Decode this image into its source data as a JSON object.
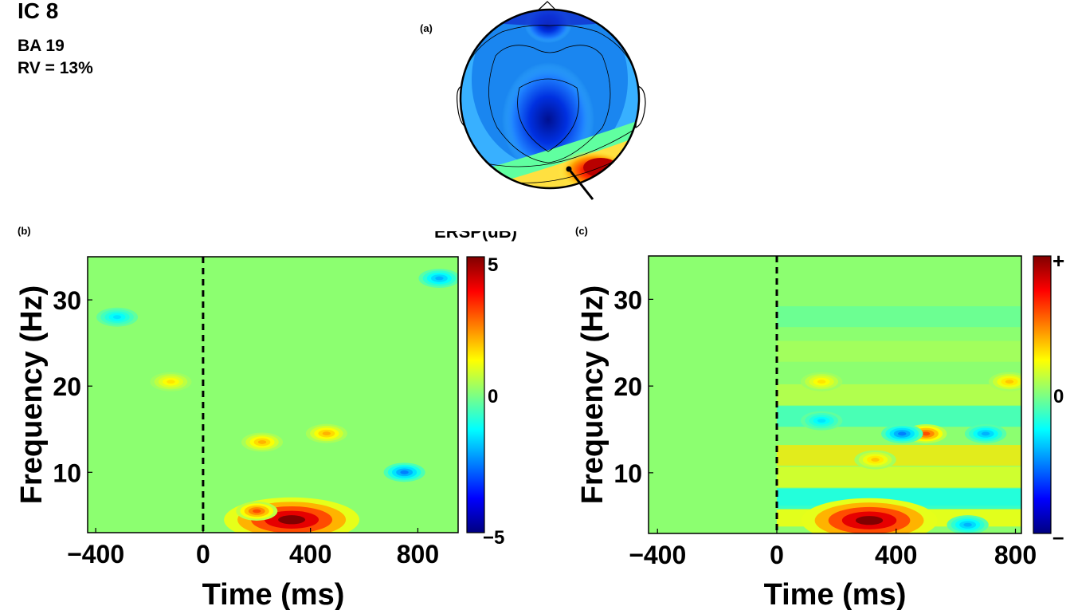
{
  "header": {
    "title": "IC 8",
    "line1": "BA 19",
    "line2": "RV = 13%"
  },
  "panels": {
    "a": "(a)",
    "b": "(b)",
    "c": "(c)"
  },
  "colors": {
    "background_green": "#8fff6f",
    "axis": "#000000"
  },
  "chart_data": [
    {
      "panel": "(a)",
      "type": "heatmap",
      "description_kind": "scalp topography",
      "dipole_marker": true
    },
    {
      "panel": "(b)",
      "type": "heatmap",
      "title": "ERSP(dB)",
      "xlabel": "Time (ms)",
      "ylabel": "Frequency (Hz)",
      "xlim": [
        -430,
        950
      ],
      "ylim": [
        3,
        35
      ],
      "xticks": [
        -400,
        0,
        400,
        800
      ],
      "yticks": [
        10,
        20,
        30
      ],
      "colorbar": {
        "min": -5,
        "max": 5,
        "ticks": [
          "5",
          "0",
          "−5"
        ]
      },
      "event_line_x": 0,
      "blobs": [
        {
          "t": 330,
          "f": 4.5,
          "value": 5
        },
        {
          "t": 200,
          "f": 5.5,
          "value": 3
        },
        {
          "t": 220,
          "f": 13.5,
          "value": 2
        },
        {
          "t": 460,
          "f": 14.5,
          "value": 2
        },
        {
          "t": -120,
          "f": 20.5,
          "value": 1.5
        },
        {
          "t": 750,
          "f": 10,
          "value": -2.5
        },
        {
          "t": -320,
          "f": 28,
          "value": -1.5
        },
        {
          "t": 880,
          "f": 32.5,
          "value": -2
        }
      ]
    },
    {
      "panel": "(c)",
      "type": "heatmap",
      "xlabel": "Time (ms)",
      "ylabel": "Frequency (Hz)",
      "xlim": [
        -430,
        820
      ],
      "ylim": [
        3,
        35
      ],
      "xticks": [
        -400,
        0,
        400,
        800
      ],
      "yticks": [
        10,
        20,
        30
      ],
      "colorbar": {
        "ticks": [
          "+",
          "0",
          "–"
        ]
      },
      "event_line_x": 0,
      "blobs": [
        {
          "t": 310,
          "f": 4.5,
          "value": 5
        },
        {
          "t": 500,
          "f": 14.5,
          "value": 3
        },
        {
          "t": 330,
          "f": 11.5,
          "value": 1.8
        },
        {
          "t": 150,
          "f": 20.5,
          "value": 1.5
        },
        {
          "t": 780,
          "f": 20.5,
          "value": 1.8
        },
        {
          "t": 420,
          "f": 14.5,
          "value": -2.5
        },
        {
          "t": 700,
          "f": 14.5,
          "value": -2
        },
        {
          "t": 150,
          "f": 16,
          "value": -1.5
        },
        {
          "t": 640,
          "f": 4,
          "value": -2
        }
      ]
    }
  ]
}
